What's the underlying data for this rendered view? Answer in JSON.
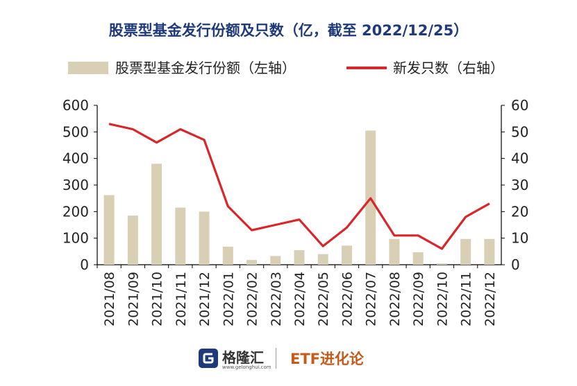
{
  "chart_data": {
    "type": "bar",
    "title": "股票型基金发行份额及只数（亿，截至 2022/12/25）",
    "categories": [
      "2021/08",
      "2021/09",
      "2021/10",
      "2021/11",
      "2021/12",
      "2022/01",
      "2022/02",
      "2022/03",
      "2022/04",
      "2022/05",
      "2022/06",
      "2022/07",
      "2022/08",
      "2022/09",
      "2022/10",
      "2022/11",
      "2022/12"
    ],
    "series": [
      {
        "name": "股票型基金发行份额（左轴）",
        "type": "bar",
        "axis": "left",
        "values": [
          262,
          185,
          380,
          215,
          200,
          68,
          18,
          33,
          55,
          40,
          72,
          505,
          97,
          47,
          5,
          97,
          97
        ]
      },
      {
        "name": "新发只数（右轴）",
        "type": "line",
        "axis": "right",
        "values": [
          53,
          51,
          46,
          51,
          47,
          22,
          13,
          15,
          17,
          7,
          14,
          25,
          11,
          11,
          6,
          18,
          23
        ]
      }
    ],
    "ylim_left": [
      0,
      600
    ],
    "ylim_right": [
      0,
      60
    ],
    "yticks_left": [
      "0",
      "100",
      "200",
      "300",
      "400",
      "500",
      "600"
    ],
    "yticks_right": [
      "0",
      "10",
      "20",
      "30",
      "40",
      "50",
      "60"
    ],
    "grid": false,
    "legend_position": "top",
    "colors": {
      "bar": "#d8cfb5",
      "line": "#d9262a",
      "title": "#1f3a7a"
    }
  },
  "footer": {
    "logo_name": "格隆汇",
    "logo_url": "www.gelonghui.com",
    "brand": "ETF进化论"
  }
}
